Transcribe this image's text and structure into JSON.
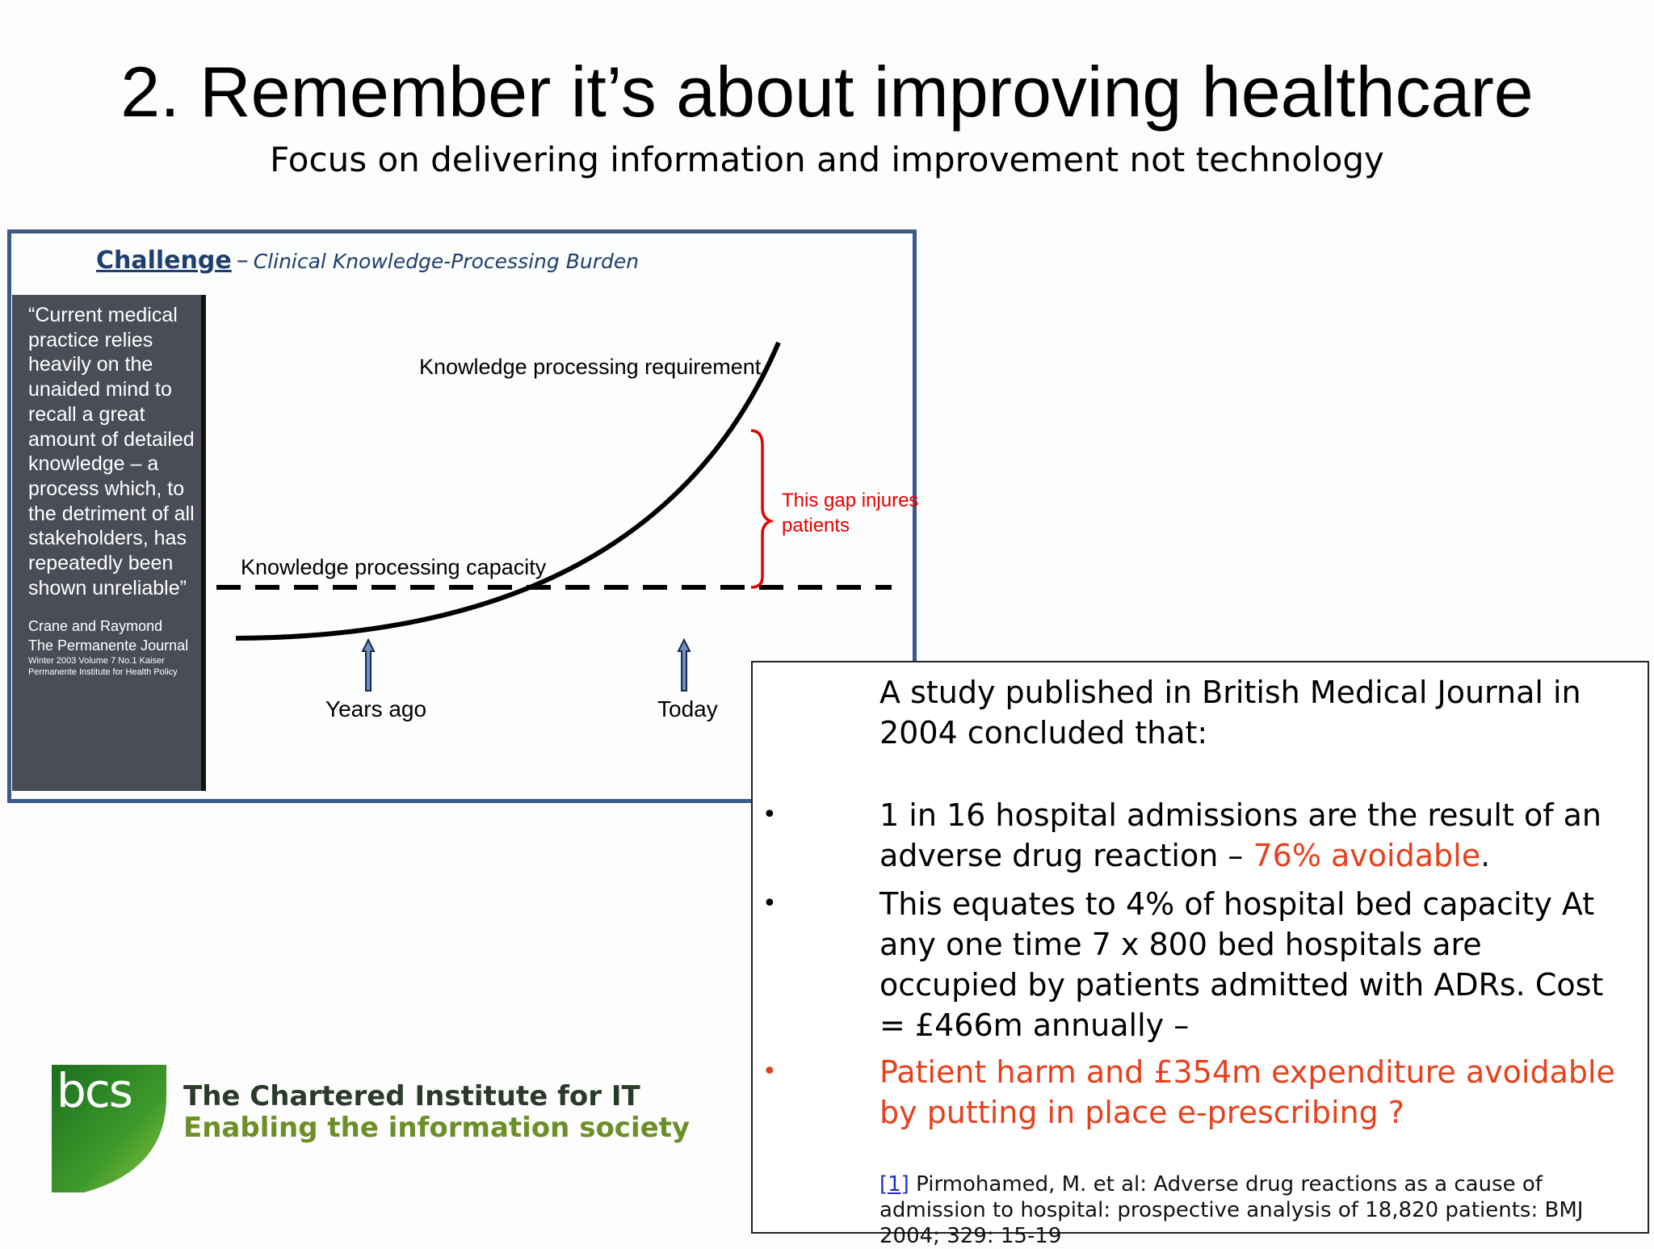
{
  "slide": {
    "title": "2. Remember it’s about improving healthcare",
    "subtitle": "Focus on delivering information and improvement not technology"
  },
  "challenge_panel": {
    "heading": "Challenge",
    "dash": "–",
    "subheading": "Clinical Knowledge-Processing Burden",
    "quote": "“Current medical practice relies heavily on the unaided mind to recall a great amount of detailed knowledge – a process which, to the detriment of all stakeholders, has repeatedly been shown unreliable”",
    "citation_line1": "Crane and Raymond",
    "citation_line2": "The Permanente Journal",
    "citation_small": "Winter 2003 Volume 7 No.1 Kaiser Permanente Institute for Health Policy",
    "diagram": {
      "requirement_label": "Knowledge processing requirement",
      "capacity_label": "Knowledge processing capacity",
      "gap_label": "This gap injures patients",
      "marker_left": "Years ago",
      "marker_right": "Today",
      "colors": {
        "curve": "#000000",
        "gap_brace": "#e60000",
        "arrow_fill": "#6f8fc4"
      }
    }
  },
  "study_box": {
    "intro": "A study published in British Medical Journal in 2004 concluded that:",
    "bullet_symbol": "•",
    "bullet1_text": "1 in 16 hospital admissions are the result of an adverse drug reaction – ",
    "bullet1_highlight": "76% avoidable",
    "bullet1_end": ".",
    "bullet2_text": "This equates to 4% of hospital bed capacity At any one time 7 x 800 bed hospitals are occupied by patients admitted with ADRs.  Cost = £466m annually –",
    "bullet3_text": "Patient harm and £354m expenditure avoidable by putting in place e-prescribing ?",
    "footnote_ref": "[1]",
    "footnote_text": " Pirmohamed, M. et al: Adverse drug reactions as a cause of admission to hospital: prospective analysis of 18,820 patients: BMJ 2004; 329: 15-19",
    "colors": {
      "highlight": "#e8401c",
      "link": "#1d2fd1"
    }
  },
  "logo": {
    "mark": "bcs",
    "line1": "The Chartered Institute for IT",
    "line2": "Enabling the information society",
    "colors": {
      "green_dark": "#1b6e1e",
      "green_light": "#8cc63f"
    }
  }
}
